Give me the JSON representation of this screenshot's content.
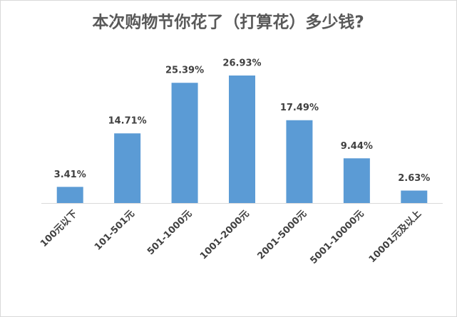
{
  "chart_data": {
    "type": "bar",
    "title": "本次购物节你花了（打算花）多少钱?",
    "categories": [
      "100元以下",
      "101-501元",
      "501-1000元",
      "1001-2000元",
      "2001-5000元",
      "5001-10000元",
      "10001元及以上"
    ],
    "values": [
      3.41,
      14.71,
      25.39,
      26.93,
      17.49,
      9.44,
      2.63
    ],
    "value_labels": [
      "3.41%",
      "14.71%",
      "25.39%",
      "26.93%",
      "17.49%",
      "9.44%",
      "2.63%"
    ],
    "color": "#5b9bd5"
  }
}
